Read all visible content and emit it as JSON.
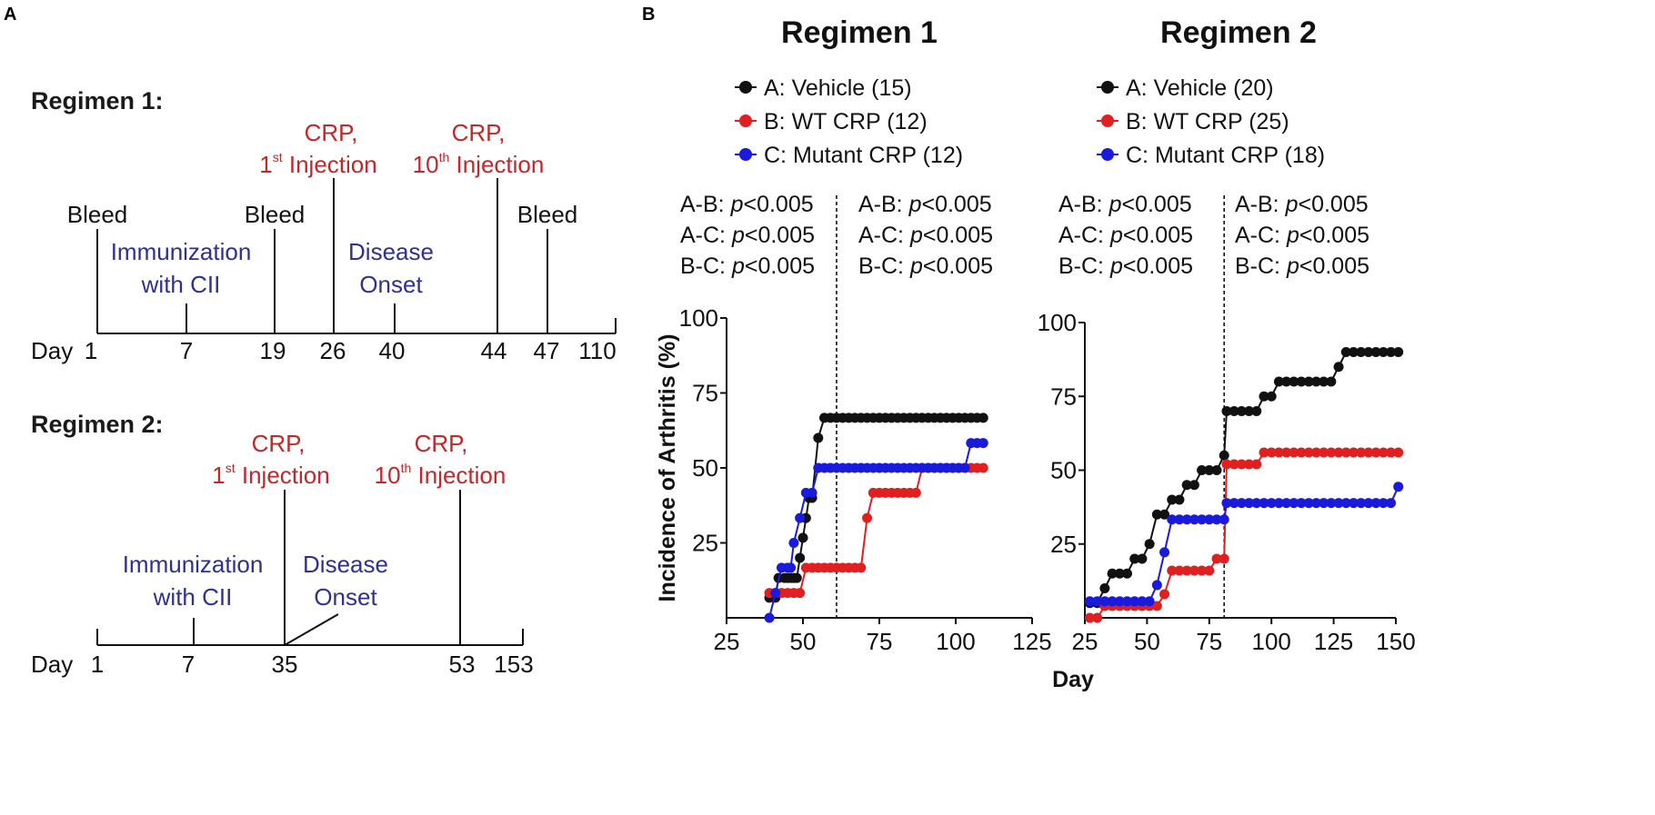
{
  "panel_a": {
    "letter": "A",
    "regimens": [
      {
        "heading": "Regimen 1:",
        "day_label": "Day",
        "days": [
          "1",
          "7",
          "19",
          "26",
          "40",
          "44",
          "47",
          "110"
        ],
        "events": {
          "bleed_1": "Bleed",
          "bleed_2": "Bleed",
          "bleed_3": "Bleed",
          "immunization_l1": "Immunization",
          "immunization_l2": "with CII",
          "onset_l1": "Disease",
          "onset_l2": "Onset",
          "crp1_l1": "CRP,",
          "crp1_l2_num": "1",
          "crp1_l2_sup": "st",
          "crp1_l2_txt": " Injection",
          "crp10_l1": "CRP,",
          "crp10_l2_num": "10",
          "crp10_l2_sup": "th",
          "crp10_l2_txt": " Injection"
        }
      },
      {
        "heading": "Regimen 2:",
        "day_label": "Day",
        "days": [
          "1",
          "7",
          "35",
          "53",
          "153"
        ],
        "events": {
          "immunization_l1": "Immunization",
          "immunization_l2": "with CII",
          "onset_l1": "Disease",
          "onset_l2": "Onset",
          "crp1_l1": "CRP,",
          "crp1_l2_num": "1",
          "crp1_l2_sup": "st",
          "crp1_l2_txt": " Injection",
          "crp10_l1": "CRP,",
          "crp10_l2_num": "10",
          "crp10_l2_sup": "th",
          "crp10_l2_txt": " Injection"
        }
      }
    ]
  },
  "panel_b": {
    "letter": "B"
  },
  "colors": {
    "vehicle": "#111111",
    "wt": "#e02020",
    "mutant": "#1a1adc",
    "red_text": "#c0282a",
    "blue_text": "#2e3192"
  },
  "chart_data": [
    {
      "type": "line",
      "title": "Regimen 1",
      "xlabel": "Day",
      "ylabel": "Incidence of Arthritis (%)",
      "xlim": [
        25,
        125
      ],
      "ylim": [
        0,
        100
      ],
      "xticks": [
        "25",
        "50",
        "75",
        "100",
        "125"
      ],
      "yticks": [
        "25",
        "50",
        "75",
        "100"
      ],
      "divider_day": 61,
      "legend": [
        "A: Vehicle (15)",
        "B: WT CRP (12)",
        "C: Mutant CRP (12)"
      ],
      "pvalues_left": [
        [
          "A-B:",
          "p",
          "<0.005"
        ],
        [
          "A-C:",
          "p",
          "<0.005"
        ],
        [
          "B-C:",
          "p",
          "<0.005"
        ]
      ],
      "pvalues_right": [
        [
          "A-B:",
          "p",
          "<0.005"
        ],
        [
          "A-C:",
          "p",
          "<0.005"
        ],
        [
          "B-C:",
          "p",
          "<0.005"
        ]
      ],
      "series": [
        {
          "name": "A: Vehicle",
          "color": "#111111",
          "x": [
            39,
            41,
            42,
            44,
            45,
            46,
            47,
            48,
            49,
            50,
            51,
            52,
            53,
            55,
            57,
            59,
            61,
            63,
            65,
            67,
            69,
            71,
            73,
            75,
            77,
            79,
            81,
            83,
            85,
            87,
            89,
            91,
            93,
            95,
            97,
            99,
            101,
            103,
            105,
            107,
            109
          ],
          "y": [
            6.7,
            6.7,
            13.3,
            13.3,
            13.3,
            13.3,
            13.3,
            13.3,
            20,
            26.7,
            33.3,
            40,
            40,
            60,
            66.7,
            66.7,
            66.7,
            66.7,
            66.7,
            66.7,
            66.7,
            66.7,
            66.7,
            66.7,
            66.7,
            66.7,
            66.7,
            66.7,
            66.7,
            66.7,
            66.7,
            66.7,
            66.7,
            66.7,
            66.7,
            66.7,
            66.7,
            66.7,
            66.7,
            66.7,
            66.7
          ]
        },
        {
          "name": "B: WT CRP",
          "color": "#e02020",
          "x": [
            39,
            41,
            43,
            45,
            47,
            49,
            51,
            53,
            55,
            57,
            59,
            61,
            63,
            65,
            67,
            69,
            71,
            73,
            75,
            77,
            79,
            81,
            83,
            85,
            87,
            89,
            91,
            93,
            95,
            97,
            99,
            101,
            103,
            105,
            107,
            109
          ],
          "y": [
            8.3,
            8.3,
            8.3,
            8.3,
            8.3,
            8.3,
            16.7,
            16.7,
            16.7,
            16.7,
            16.7,
            16.7,
            16.7,
            16.7,
            16.7,
            16.7,
            33.3,
            41.7,
            41.7,
            41.7,
            41.7,
            41.7,
            41.7,
            41.7,
            41.7,
            50,
            50,
            50,
            50,
            50,
            50,
            50,
            50,
            50,
            50,
            50
          ]
        },
        {
          "name": "C: Mutant CRP",
          "color": "#1a1adc",
          "x": [
            39,
            41,
            43,
            45,
            46,
            47,
            49,
            51,
            53,
            55,
            57,
            59,
            61,
            63,
            65,
            67,
            69,
            71,
            73,
            75,
            77,
            79,
            81,
            83,
            85,
            87,
            89,
            91,
            93,
            95,
            97,
            99,
            101,
            103,
            105,
            107,
            109
          ],
          "y": [
            0,
            8.3,
            16.7,
            16.7,
            16.7,
            25,
            33.3,
            41.7,
            41.7,
            50,
            50,
            50,
            50,
            50,
            50,
            50,
            50,
            50,
            50,
            50,
            50,
            50,
            50,
            50,
            50,
            50,
            50,
            50,
            50,
            50,
            50,
            50,
            50,
            50,
            58.3,
            58.3,
            58.3
          ]
        }
      ]
    },
    {
      "type": "line",
      "title": "Regimen 2",
      "xlabel": "Day",
      "ylabel": "",
      "xlim": [
        25,
        150
      ],
      "ylim": [
        0,
        100
      ],
      "xticks": [
        "25",
        "50",
        "75",
        "100",
        "125",
        "150"
      ],
      "yticks": [
        "25",
        "50",
        "75",
        "100"
      ],
      "divider_day": 81,
      "legend": [
        "A: Vehicle (20)",
        "B: WT CRP (25)",
        "C: Mutant CRP (18)"
      ],
      "pvalues_left": [
        [
          "A-B:",
          "p",
          "<0.005"
        ],
        [
          "A-C:",
          "p",
          "<0.005"
        ],
        [
          "B-C:",
          "p",
          "<0.005"
        ]
      ],
      "pvalues_right": [
        [
          "A-B:",
          "p",
          "<0.005"
        ],
        [
          "A-C:",
          "p",
          "<0.005"
        ],
        [
          "B-C:",
          "p",
          "<0.005"
        ]
      ],
      "series": [
        {
          "name": "A: Vehicle",
          "color": "#111111",
          "x": [
            27,
            30,
            33,
            36,
            39,
            42,
            45,
            48,
            51,
            54,
            57,
            60,
            63,
            66,
            69,
            72,
            75,
            78,
            81,
            82,
            85,
            88,
            91,
            94,
            97,
            100,
            103,
            106,
            109,
            112,
            115,
            118,
            121,
            124,
            127,
            130,
            133,
            136,
            139,
            142,
            145,
            148,
            151
          ],
          "y": [
            5,
            5,
            10,
            15,
            15,
            15,
            20,
            20,
            25,
            35,
            35,
            40,
            40,
            45,
            45,
            50,
            50,
            50,
            55,
            70,
            70,
            70,
            70,
            70,
            75,
            75,
            80,
            80,
            80,
            80,
            80,
            80,
            80,
            80,
            85,
            90,
            90,
            90,
            90,
            90,
            90,
            90,
            90
          ]
        },
        {
          "name": "B: WT CRP",
          "color": "#e02020",
          "x": [
            27,
            30,
            33,
            36,
            39,
            42,
            45,
            48,
            51,
            54,
            57,
            60,
            63,
            66,
            69,
            72,
            75,
            78,
            81,
            82,
            85,
            88,
            91,
            94,
            97,
            100,
            103,
            106,
            109,
            112,
            115,
            118,
            121,
            124,
            127,
            130,
            133,
            136,
            139,
            142,
            145,
            148,
            151
          ],
          "y": [
            0,
            0,
            4,
            4,
            4,
            4,
            4,
            4,
            4,
            4,
            8,
            16,
            16,
            16,
            16,
            16,
            16,
            20,
            20,
            52,
            52,
            52,
            52,
            52,
            56,
            56,
            56,
            56,
            56,
            56,
            56,
            56,
            56,
            56,
            56,
            56,
            56,
            56,
            56,
            56,
            56,
            56,
            56
          ]
        },
        {
          "name": "C: Mutant CRP",
          "color": "#1a1adc",
          "x": [
            27,
            30,
            33,
            36,
            39,
            42,
            45,
            48,
            51,
            54,
            57,
            60,
            63,
            66,
            69,
            72,
            75,
            78,
            81,
            82,
            85,
            88,
            91,
            94,
            97,
            100,
            103,
            106,
            109,
            112,
            115,
            118,
            121,
            124,
            127,
            130,
            133,
            136,
            139,
            142,
            145,
            148,
            151
          ],
          "y": [
            5.6,
            5.6,
            5.6,
            5.6,
            5.6,
            5.6,
            5.6,
            5.6,
            5.6,
            11.1,
            22.2,
            33.3,
            33.3,
            33.3,
            33.3,
            33.3,
            33.3,
            33.3,
            33.3,
            38.9,
            38.9,
            38.9,
            38.9,
            38.9,
            38.9,
            38.9,
            38.9,
            38.9,
            38.9,
            38.9,
            38.9,
            38.9,
            38.9,
            38.9,
            38.9,
            38.9,
            38.9,
            38.9,
            38.9,
            38.9,
            38.9,
            38.9,
            44.4
          ]
        }
      ]
    }
  ]
}
